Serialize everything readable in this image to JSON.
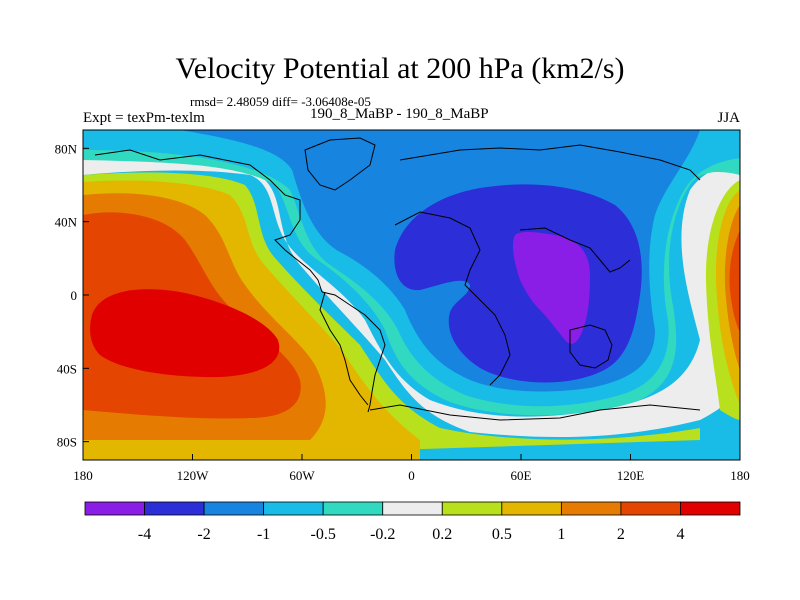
{
  "title": "Velocity Potential at 200 hPa (km2/s)",
  "stats": "rmsd= 2.48059 diff= -3.06408e-05",
  "left_label": "Expt = texPm-texlm",
  "center_label": "190_8_MaBP - 190_8_MaBP",
  "right_label": "JJA",
  "chart_data": {
    "type": "heatmap",
    "title": "Velocity Potential at 200 hPa (km2/s)",
    "x_ticks": [
      "180",
      "120W",
      "60W",
      "0",
      "60E",
      "120E",
      "180"
    ],
    "x_values": [
      -180,
      -120,
      -60,
      0,
      60,
      120,
      180
    ],
    "y_ticks": [
      "80N",
      "40N",
      "0",
      "40S",
      "80S"
    ],
    "y_values": [
      80,
      40,
      0,
      -40,
      -80
    ],
    "xlim": [
      -180,
      180
    ],
    "ylim": [
      -90,
      90
    ],
    "colorbar": {
      "levels": [
        "-4",
        "-2",
        "-1",
        "-0.5",
        "-0.2",
        "0.2",
        "0.5",
        "1",
        "2",
        "4"
      ],
      "colors": [
        "#8a1de6",
        "#2c2ed8",
        "#1784e0",
        "#19bce6",
        "#30d9c0",
        "#ededed",
        "#b8e01c",
        "#e3b700",
        "#e57b00",
        "#e44500",
        "#e00000"
      ]
    },
    "fields": {
      "minimum_region": "eastern hemisphere (about 40E-140E, 40S-40N), peak near 75E 10S below -4",
      "maximum_region": "Pacific (about 180-100W, 10N-50S), peak above 4"
    }
  }
}
